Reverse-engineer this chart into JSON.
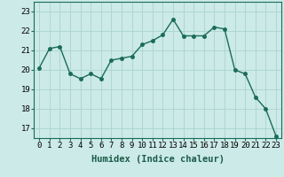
{
  "x": [
    0,
    1,
    2,
    3,
    4,
    5,
    6,
    7,
    8,
    9,
    10,
    11,
    12,
    13,
    14,
    15,
    16,
    17,
    18,
    19,
    20,
    21,
    22,
    23
  ],
  "y": [
    20.1,
    21.1,
    21.2,
    19.8,
    19.55,
    19.8,
    19.55,
    20.5,
    20.6,
    20.7,
    21.3,
    21.5,
    21.8,
    22.6,
    21.75,
    21.75,
    21.75,
    22.2,
    22.1,
    20.0,
    19.8,
    18.6,
    18.0,
    16.6
  ],
  "line_color": "#1a6b5a",
  "marker": "o",
  "markersize": 2.5,
  "linewidth": 1.0,
  "bg_color": "#cceae7",
  "grid_color": "#aad4d0",
  "xlabel": "Humidex (Indice chaleur)",
  "xlabel_fontsize": 7.5,
  "tick_fontsize": 6.5,
  "ylim": [
    16.5,
    23.5
  ],
  "yticks": [
    17,
    18,
    19,
    20,
    21,
    22,
    23
  ],
  "xticks": [
    0,
    1,
    2,
    3,
    4,
    5,
    6,
    7,
    8,
    9,
    10,
    11,
    12,
    13,
    14,
    15,
    16,
    17,
    18,
    19,
    20,
    21,
    22,
    23
  ]
}
